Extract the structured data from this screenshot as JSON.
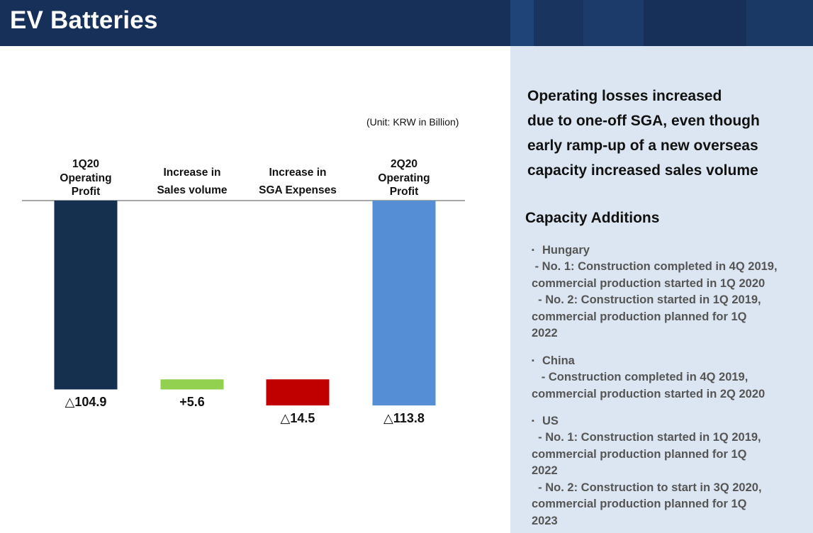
{
  "header": {
    "title": "EV Batteries",
    "bg_color": "#16305a",
    "stripe_colors": [
      "#1f4478",
      "#18345f",
      "#1c3b6a",
      "#16305a",
      "#1b3965"
    ]
  },
  "chart_data": {
    "type": "waterfall",
    "unit": "(Unit: KRW in Billion)",
    "categories": [
      [
        "1Q20",
        "Operating",
        "Profit"
      ],
      [
        "Increase in",
        "Sales volume"
      ],
      [
        "Increase in",
        "SGA Expenses"
      ],
      [
        "2Q20",
        "Operating",
        "Profit"
      ]
    ],
    "values": [
      -104.9,
      5.6,
      -14.5,
      -113.8
    ],
    "value_labels": [
      "△104.9",
      "+5.6",
      "△14.5",
      "△113.8"
    ],
    "colors": [
      "#15304f",
      "#92d050",
      "#c00000",
      "#558ed5"
    ],
    "ylim": [
      -125,
      0
    ]
  },
  "summary": {
    "lines": [
      "Operating losses increased",
      "due to one-off SGA, even though",
      "early ramp-up of a new overseas",
      "capacity increased sales volume"
    ]
  },
  "capacity": {
    "title": "Capacity Additions",
    "bullet": "▪",
    "sections": [
      {
        "name": "Hungary",
        "lines": [
          " - No. 1: Construction completed in 4Q 2019,",
          "commercial production started in 1Q 2020",
          "  - No. 2: Construction started in 1Q 2019,",
          "commercial production planned for 1Q",
          "2022"
        ]
      },
      {
        "name": "China",
        "lines": [
          "   - Construction completed in 4Q 2019,",
          "commercial production started in 2Q 2020"
        ]
      },
      {
        "name": "US",
        "lines": [
          "  - No. 1: Construction started in 1Q 2019,",
          "commercial production planned for 1Q",
          "2022",
          "  - No. 2: Construction to start in 3Q 2020,",
          "commercial production planned for 1Q",
          "2023"
        ]
      }
    ]
  }
}
